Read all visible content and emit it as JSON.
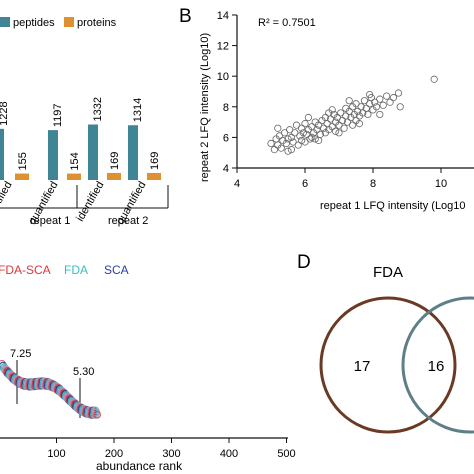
{
  "panels": {
    "b": "B",
    "d": "D"
  },
  "colors": {
    "peptides": "#3f8596",
    "proteins": "#e0912f",
    "fda_sca": "#d6393f",
    "fda": "#3bbcc0",
    "sca": "#2b3f9a",
    "venn_fda": "#6b3a24",
    "venn_other": "#5f7f86"
  },
  "chart_data": [
    {
      "id": "A",
      "type": "bar",
      "legend": [
        "peptides",
        "proteins"
      ],
      "categories": [
        "identified",
        "quantified",
        "identified",
        "quantified"
      ],
      "category_labels_visible": [
        "ntified",
        "quantified",
        "identified",
        "quantified"
      ],
      "groups": [
        "repeat 1",
        "repeat 2"
      ],
      "series": [
        {
          "name": "peptides",
          "values": [
            1228,
            1197,
            1332,
            1314
          ]
        },
        {
          "name": "proteins",
          "values": [
            155,
            154,
            169,
            169
          ]
        }
      ],
      "value_labels_visible": {
        "peptides": [
          "1228",
          "1197",
          "1332",
          "1314"
        ],
        "proteins": [
          "155",
          "154",
          "169",
          "169"
        ]
      }
    },
    {
      "id": "B",
      "type": "scatter",
      "annotation": "R² = 0.7501",
      "xlabel": "repeat 1 LFQ intensity (Log10",
      "ylabel": "repeat 2 LFQ intensity (Log10)",
      "xlim": [
        4,
        10.5
      ],
      "ylim": [
        4,
        14
      ],
      "xticks": [
        "4",
        "6",
        "8",
        "10"
      ],
      "yticks": [
        "4",
        "6",
        "8",
        "10",
        "12",
        "14"
      ],
      "points": [
        [
          5.0,
          5.6
        ],
        [
          5.1,
          5.2
        ],
        [
          5.15,
          5.9
        ],
        [
          5.2,
          5.5
        ],
        [
          5.25,
          6.1
        ],
        [
          5.3,
          5.3
        ],
        [
          5.35,
          5.8
        ],
        [
          5.4,
          6.3
        ],
        [
          5.45,
          5.6
        ],
        [
          5.5,
          5.9
        ],
        [
          5.55,
          6.5
        ],
        [
          5.6,
          5.2
        ],
        [
          5.6,
          6.0
        ],
        [
          5.65,
          5.7
        ],
        [
          5.7,
          6.3
        ],
        [
          5.75,
          6.8
        ],
        [
          5.8,
          5.5
        ],
        [
          5.85,
          6.1
        ],
        [
          5.9,
          5.8
        ],
        [
          5.9,
          6.6
        ],
        [
          5.95,
          6.3
        ],
        [
          6.0,
          5.7
        ],
        [
          6.0,
          6.9
        ],
        [
          6.05,
          6.2
        ],
        [
          6.1,
          6.5
        ],
        [
          6.15,
          5.9
        ],
        [
          6.2,
          6.7
        ],
        [
          6.25,
          6.3
        ],
        [
          6.3,
          7.0
        ],
        [
          6.3,
          5.9
        ],
        [
          6.35,
          6.5
        ],
        [
          6.4,
          6.8
        ],
        [
          6.45,
          6.2
        ],
        [
          6.5,
          7.1
        ],
        [
          6.55,
          6.6
        ],
        [
          6.6,
          6.3
        ],
        [
          6.6,
          7.3
        ],
        [
          6.65,
          6.9
        ],
        [
          6.7,
          6.5
        ],
        [
          6.75,
          7.2
        ],
        [
          6.8,
          6.7
        ],
        [
          6.85,
          7.5
        ],
        [
          6.9,
          6.4
        ],
        [
          6.9,
          7.0
        ],
        [
          6.95,
          7.3
        ],
        [
          7.0,
          6.8
        ],
        [
          7.05,
          7.6
        ],
        [
          7.1,
          7.1
        ],
        [
          7.15,
          6.6
        ],
        [
          7.2,
          7.4
        ],
        [
          7.2,
          7.9
        ],
        [
          7.25,
          7.0
        ],
        [
          7.3,
          7.7
        ],
        [
          7.35,
          7.3
        ],
        [
          7.4,
          8.0
        ],
        [
          7.45,
          7.5
        ],
        [
          7.5,
          7.1
        ],
        [
          7.5,
          8.2
        ],
        [
          7.55,
          7.7
        ],
        [
          7.6,
          7.4
        ],
        [
          7.65,
          8.0
        ],
        [
          7.7,
          7.6
        ],
        [
          7.75,
          8.4
        ],
        [
          7.8,
          7.9
        ],
        [
          7.85,
          7.5
        ],
        [
          7.9,
          8.2
        ],
        [
          7.95,
          8.6
        ],
        [
          8.0,
          7.8
        ],
        [
          8.05,
          8.3
        ],
        [
          8.1,
          8.0
        ],
        [
          8.2,
          8.5
        ],
        [
          8.3,
          8.1
        ],
        [
          8.4,
          8.7
        ],
        [
          8.5,
          8.3
        ],
        [
          8.6,
          8.6
        ],
        [
          8.75,
          8.9
        ],
        [
          5.2,
          6.6
        ],
        [
          5.5,
          5.1
        ],
        [
          6.1,
          7.3
        ],
        [
          6.4,
          5.8
        ],
        [
          6.7,
          7.6
        ],
        [
          7.0,
          6.3
        ],
        [
          7.3,
          8.4
        ],
        [
          7.6,
          6.9
        ],
        [
          7.9,
          8.8
        ],
        [
          8.2,
          7.5
        ],
        [
          8.8,
          8.0
        ],
        [
          6.2,
          6.0
        ],
        [
          6.8,
          7.8
        ],
        [
          7.4,
          6.8
        ],
        [
          9.8,
          9.8
        ]
      ]
    },
    {
      "id": "C",
      "type": "scatter",
      "legend": [
        "FDA-SCA",
        "FDA",
        "SCA"
      ],
      "xlabel": "abundance rank",
      "xlim": [
        0,
        500
      ],
      "xticks": [
        "100",
        "200",
        "300",
        "400",
        "500"
      ],
      "annotations": [
        "7.25",
        "5.30"
      ]
    },
    {
      "id": "D",
      "type": "venn",
      "sets": [
        "FDA"
      ],
      "values": [
        "17",
        "16"
      ]
    }
  ]
}
